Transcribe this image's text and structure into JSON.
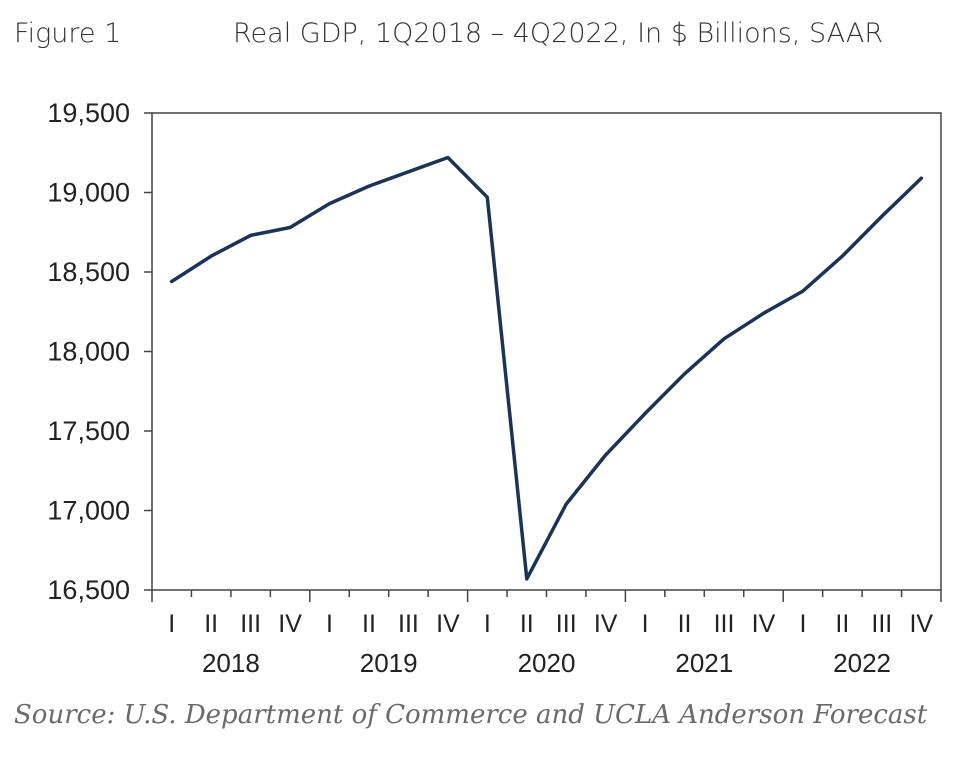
{
  "figure_label": "Figure 1",
  "title": "Real GDP, 1Q2018 – 4Q2022, In $ Billions, SAAR",
  "source": "Source: U.S. Department of Commerce and UCLA Anderson Forecast",
  "colors": {
    "line": "#1b3456",
    "axis": "#444444"
  },
  "chart_data": {
    "type": "line",
    "title": "Real GDP, 1Q2018 – 4Q2022, In $ Billions, SAAR",
    "xlabel": "",
    "ylabel": "",
    "ylim": [
      16500,
      19500
    ],
    "yticks": [
      16500,
      17000,
      17500,
      18000,
      18500,
      19000,
      19500
    ],
    "ytick_labels": [
      "16,500",
      "17,000",
      "17,500",
      "18,000",
      "18,500",
      "19,000",
      "19,500"
    ],
    "quarter_labels": [
      "I",
      "II",
      "III",
      "IV",
      "I",
      "II",
      "III",
      "IV",
      "I",
      "II",
      "III",
      "IV",
      "I",
      "II",
      "III",
      "IV",
      "I",
      "II",
      "III",
      "IV"
    ],
    "years": [
      "2018",
      "2019",
      "2020",
      "2021",
      "2022"
    ],
    "grid": false,
    "series": [
      {
        "values": [
          18440,
          18600,
          18730,
          18780,
          18930,
          19040,
          19130,
          19220,
          18970,
          16570,
          17040,
          17350,
          17610,
          17860,
          18080,
          18240,
          18380,
          18600,
          18850,
          19090
        ]
      }
    ]
  }
}
